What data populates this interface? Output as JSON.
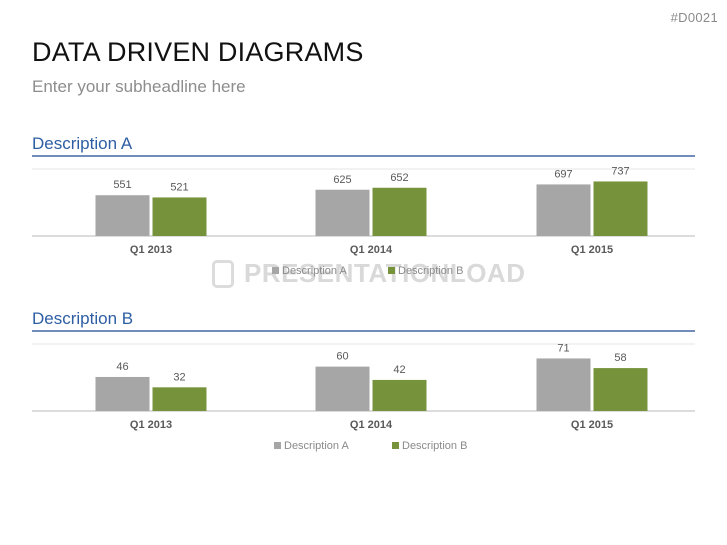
{
  "slide_id": "#D0021",
  "title": "DATA DRIVEN DIAGRAMS",
  "subtitle": "Enter your subheadline here",
  "watermark": "PRESENTATIONLOAD",
  "colors": {
    "series_a": "#a6a6a6",
    "series_b": "#76933c",
    "section_title": "#2d5ea4",
    "rule": "#6f8cba",
    "value_label": "#595959",
    "tick_label": "#595959",
    "legend_text": "#8a8a8a"
  },
  "chart_data": [
    {
      "type": "bar",
      "title": "Description A",
      "categories": [
        "Q1 2013",
        "Q1 2014",
        "Q1 2015"
      ],
      "series": [
        {
          "name": "Description A",
          "values": [
            551,
            625,
            697
          ]
        },
        {
          "name": "Description B",
          "values": [
            521,
            652,
            737
          ]
        }
      ],
      "ylim": [
        0,
        1000
      ],
      "grid": false,
      "legend": "bottom-center"
    },
    {
      "type": "bar",
      "title": "Description B",
      "categories": [
        "Q1 2013",
        "Q1 2014",
        "Q1 2015"
      ],
      "series": [
        {
          "name": "Description A",
          "values": [
            46,
            60,
            71
          ]
        },
        {
          "name": "Description B",
          "values": [
            32,
            42,
            58
          ]
        }
      ],
      "ylim": [
        0,
        100
      ],
      "grid": false,
      "legend": "bottom-center"
    }
  ]
}
